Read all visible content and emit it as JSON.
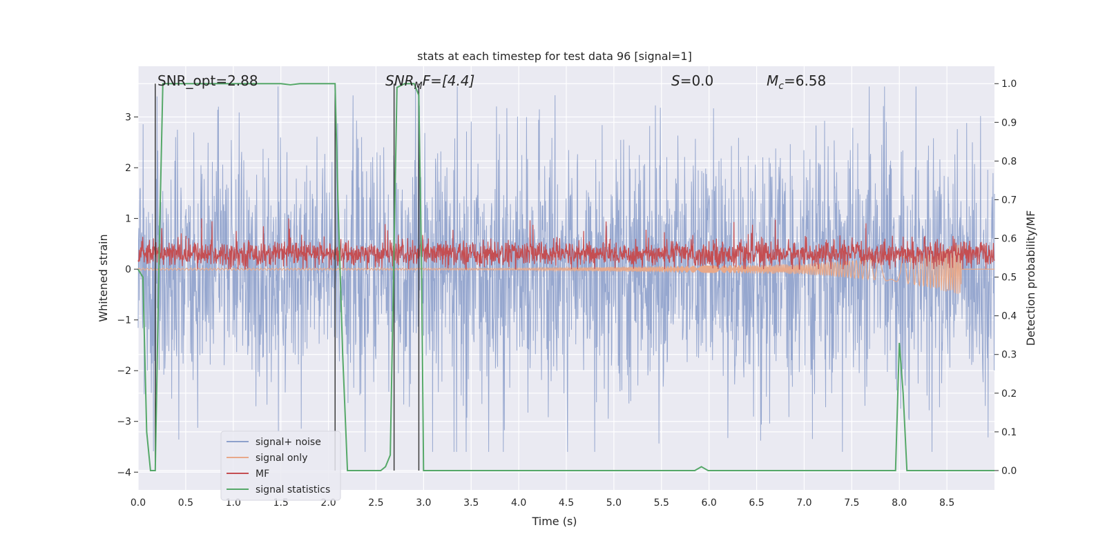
{
  "chart_data": {
    "type": "line",
    "title": "stats at each timestep for test data 96 [signal=1]",
    "xlabel": "Time (s)",
    "ylabel_left": "Whitened strain",
    "ylabel_right": "Detection probability/MF",
    "xlim": [
      0.0,
      9.0
    ],
    "ylim_left": [
      -4.35,
      4.0
    ],
    "ylim_right": [
      -0.05,
      1.045
    ],
    "xticks": [
      "0.0",
      "0.5",
      "1.0",
      "1.5",
      "2.0",
      "2.5",
      "3.0",
      "3.5",
      "4.0",
      "4.5",
      "5.0",
      "5.5",
      "6.0",
      "6.5",
      "7.0",
      "7.5",
      "8.0",
      "8.5"
    ],
    "yticks_left": [
      "3",
      "2",
      "1",
      "0",
      "−1",
      "−2",
      "−3",
      "−4"
    ],
    "yticks_right": [
      "1.0",
      "0.9",
      "0.8",
      "0.7",
      "0.6",
      "0.5",
      "0.4",
      "0.3",
      "0.2",
      "0.1",
      "0.0"
    ],
    "grid": true,
    "legend_position": "lower-left",
    "annotations": {
      "snr_opt": "SNR_opt=2.88",
      "snr_mf_base": "SNR",
      "snr_mf_sub": "M",
      "snr_mf_rest": "F=[4.4]",
      "s_base": "S",
      "s_rest": "=0.0",
      "mc_base": "M",
      "mc_sub": "c",
      "mc_rest": "=6.58"
    },
    "vertical_lines": [
      0.18,
      2.07,
      2.69,
      2.95
    ],
    "series": [
      {
        "name": "signal+ noise",
        "color": "#8da0cb",
        "amplitude_range": [
          -3.6,
          3.6
        ]
      },
      {
        "name": "signal only",
        "color": "#e8a889",
        "tail_envelope": [
          [
            7.0,
            0.1
          ],
          [
            8.0,
            0.25
          ],
          [
            8.65,
            0.5
          ]
        ]
      },
      {
        "name": "MF",
        "color": "#c44e52",
        "center": 0.3,
        "amplitude_range": [
          0.0,
          1.0
        ]
      },
      {
        "name": "signal statistics",
        "color": "#55a868",
        "x": [
          0.0,
          0.05,
          0.09,
          0.13,
          0.18,
          0.22,
          0.26,
          0.3,
          1.0,
          1.5,
          1.6,
          1.7,
          2.0,
          2.07,
          2.1,
          2.15,
          2.2,
          2.3,
          2.55,
          2.6,
          2.65,
          2.72,
          2.8,
          2.9,
          2.95,
          2.98,
          3.0,
          5.85,
          5.92,
          5.99,
          6.05,
          7.9,
          7.96,
          8.0,
          8.04,
          8.08,
          8.12,
          9.0
        ],
        "y": [
          0.52,
          0.5,
          0.1,
          0.0,
          0.0,
          0.55,
          1.0,
          1.0,
          1.0,
          1.0,
          0.997,
          1.0,
          1.0,
          1.0,
          0.7,
          0.3,
          0.0,
          0.0,
          0.0,
          0.01,
          0.04,
          0.99,
          1.0,
          1.0,
          0.97,
          0.5,
          0.0,
          0.0,
          0.01,
          0.0,
          0.0,
          0.0,
          0.0,
          0.33,
          0.2,
          0.0,
          0.0,
          0.0
        ]
      }
    ]
  }
}
